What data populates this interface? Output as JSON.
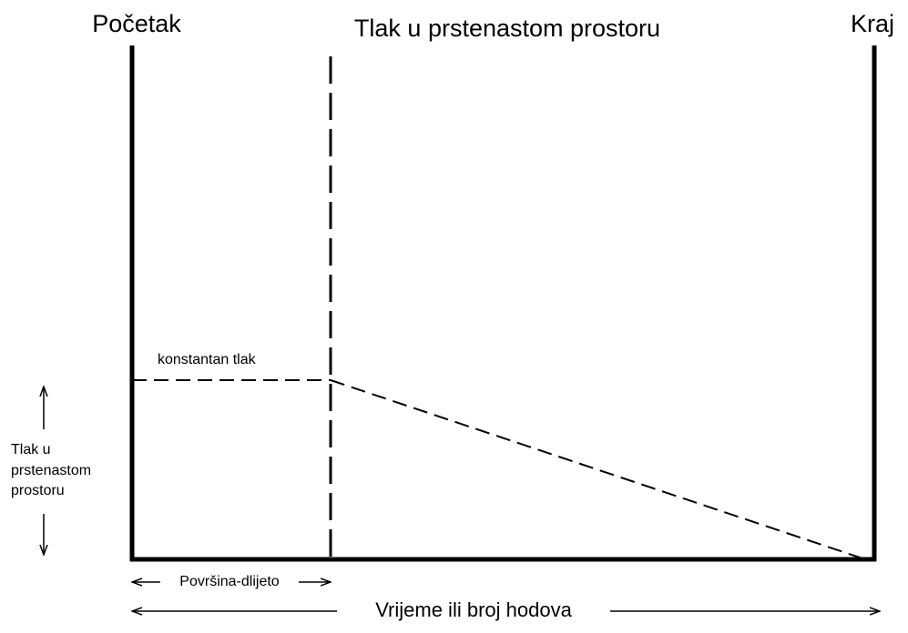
{
  "header": {
    "start": "Početak",
    "title": "Tlak u prstenastom prostoru",
    "end": "Kraj"
  },
  "annotation": "konstantan tlak",
  "y_axis_label": [
    "Tlak u",
    "prstenastom",
    "prostoru"
  ],
  "bottom_labels": {
    "bit": "Površina-dlijeto",
    "time": "Vrijeme ili broj hodova"
  }
}
